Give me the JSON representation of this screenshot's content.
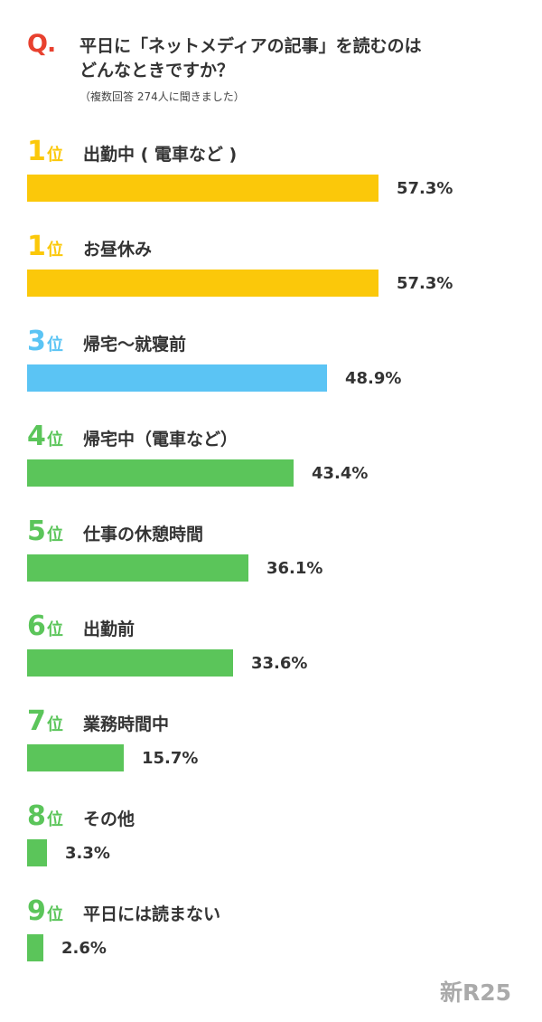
{
  "question": {
    "mark": "Q.",
    "line1": "平日に「ネットメディアの記事」を読むのは",
    "line2": "どんなときですか？",
    "note": "（複数回答 274人に聞きました）"
  },
  "brand": "新R25",
  "colors": {
    "accent": "#e8412f",
    "gold": "#fbc80a",
    "blue": "#5bc4f4",
    "green": "#5bc55a"
  },
  "chart_data": {
    "type": "bar",
    "orientation": "horizontal",
    "unit": "%",
    "ranks": [
      "1",
      "1",
      "3",
      "4",
      "5",
      "6",
      "7",
      "8",
      "9"
    ],
    "rank_suffix": "位",
    "categories": [
      "出勤中 ( 電車など )",
      "お昼休み",
      "帰宅〜就寝前",
      "帰宅中（電車など）",
      "仕事の休憩時間",
      "出勤前",
      "業務時間中",
      "その他",
      "平日には読まない"
    ],
    "values": [
      57.3,
      57.3,
      48.9,
      43.4,
      36.1,
      33.6,
      15.7,
      3.3,
      2.6
    ],
    "value_labels": [
      "57.3%",
      "57.3%",
      "48.9%",
      "43.4%",
      "36.1%",
      "33.6%",
      "15.7%",
      "3.3%",
      "2.6%"
    ],
    "bar_colors": [
      "#fbc80a",
      "#fbc80a",
      "#5bc4f4",
      "#5bc55a",
      "#5bc55a",
      "#5bc55a",
      "#5bc55a",
      "#5bc55a",
      "#5bc55a"
    ],
    "xlim": [
      0,
      57.3
    ]
  }
}
